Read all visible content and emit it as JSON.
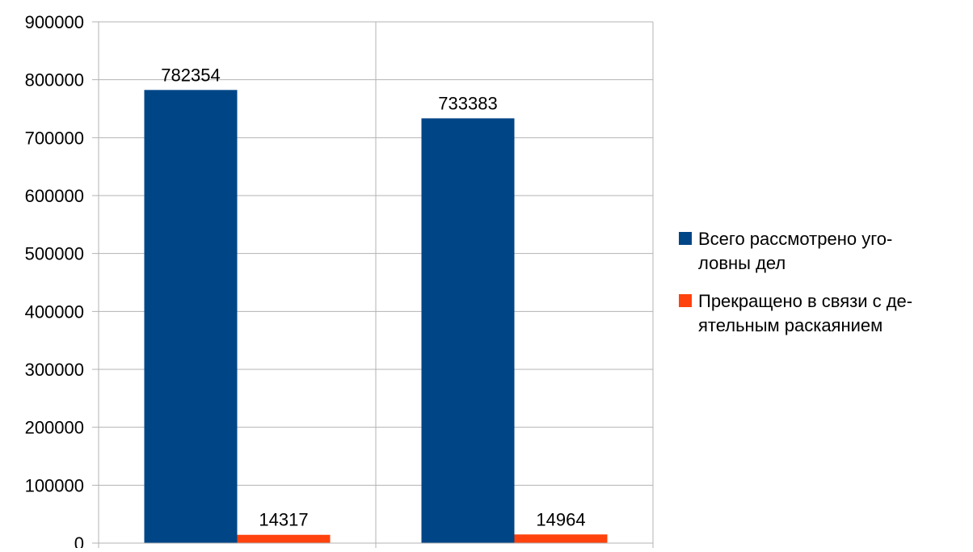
{
  "chart_data": {
    "type": "bar",
    "title": "",
    "xlabel": "",
    "ylabel": "",
    "categories": [
      "",
      ""
    ],
    "ylim": [
      0,
      900000
    ],
    "yticks": [
      0,
      100000,
      200000,
      300000,
      400000,
      500000,
      600000,
      700000,
      800000,
      900000
    ],
    "grid": true,
    "legend_position": "right",
    "series": [
      {
        "name": "Всего рассмотрено уго-\nловны дел",
        "color": "#004586",
        "values": [
          782354,
          733383
        ],
        "data_labels": [
          "782354",
          "733383"
        ]
      },
      {
        "name": "Прекращено в связи с де-\nятельным раскаянием",
        "color": "#ff420e",
        "values": [
          14317,
          14964
        ],
        "data_labels": [
          "14317",
          "14964"
        ]
      }
    ]
  }
}
